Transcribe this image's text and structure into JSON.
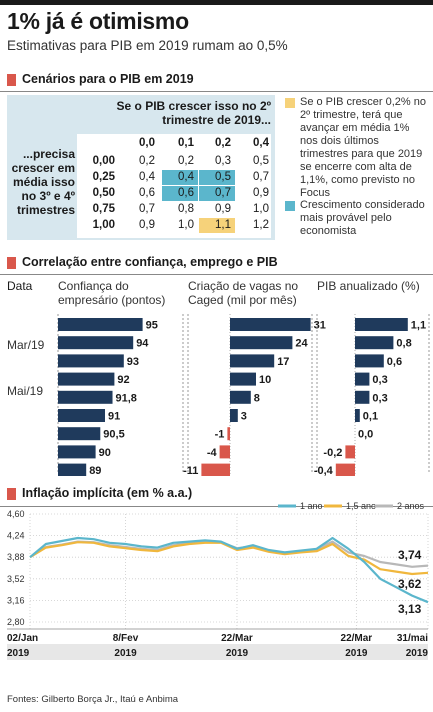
{
  "title": "1% já é otimismo",
  "subtitle": "Estimativas para PIB em 2019 rumam ao 0,5%",
  "colors": {
    "accent": "#d9574b",
    "navy": "#1f3a5c",
    "teal": "#5bb6cc",
    "yellow": "#f6d27a",
    "gold": "#f0b73d",
    "gray": "#b8b8b8",
    "panel": "#d7e7ee"
  },
  "scenarios": {
    "heading": "Cenários para o PIB em 2019",
    "col_header": "Se o PIB crescer isso no 2º trimestre de 2019...",
    "row_header": "...precisa crescer em média isso no 3º e 4º trimestres",
    "col_values": [
      "0,0",
      "0,1",
      "0,2",
      "0,4"
    ],
    "row_values": [
      "0,00",
      "0,25",
      "0,50",
      "0,75",
      "1,00"
    ],
    "cells": [
      [
        "0,2",
        "0,2",
        "0,3",
        "0,5"
      ],
      [
        "0,4",
        "0,4",
        "0,5",
        "0,7"
      ],
      [
        "0,6",
        "0,6",
        "0,7",
        "0,9"
      ],
      [
        "0,7",
        "0,8",
        "0,9",
        "1,0"
      ],
      [
        "0,9",
        "1,0",
        "1,1",
        "1,2"
      ]
    ],
    "highlight_yellow": [
      [
        4,
        2
      ]
    ],
    "highlight_teal": [
      [
        1,
        1
      ],
      [
        1,
        2
      ],
      [
        2,
        1
      ],
      [
        2,
        2
      ]
    ],
    "legend_yellow": "Se o PIB crescer 0,2% no 2º trimestre, terá que avançar em média 1% nos dois últimos trimestres para que 2019 se encerre com alta de 1,1%, como previsto no Focus",
    "legend_teal": "Crescimento considerado mais provável pelo economista"
  },
  "correlation": {
    "heading": "Correlação entre confiança, emprego e PIB",
    "data_label": "Data",
    "row_labels": [
      "Mar/19",
      "Mai/19"
    ],
    "panels": [
      {
        "title": "Confiança do empresário (pontos)"
      },
      {
        "title": "Criação de vagas no Caged (mil por mês)"
      },
      {
        "title": "PIB anualizado (%)"
      }
    ]
  },
  "inflation": {
    "heading": "Inflação implícita (em % a.a.)",
    "callouts": [
      "3,74",
      "3,62",
      "3,13"
    ],
    "x_dates": [
      "02/Jan",
      "8/Fev",
      "22/Mar",
      "22/Mar",
      "31/mai"
    ],
    "x_years": [
      "2019",
      "2019",
      "2019",
      "2019",
      "2019"
    ]
  },
  "source": "Fontes: Gilberto Borça Jr., Itaú e Anbima",
  "chart_data": [
    {
      "type": "bar",
      "title": "Confiança do empresário (pontos)",
      "categories": [
        "1",
        "2",
        "3",
        "4",
        "5",
        "6",
        "7",
        "8",
        "9"
      ],
      "values": [
        95,
        94,
        93,
        92,
        91.8,
        91,
        90.5,
        90,
        89
      ],
      "labels": [
        "95",
        "94",
        "93",
        "92",
        "91,8",
        "91",
        "90,5",
        "90",
        "89"
      ],
      "xlim": [
        86,
        96
      ]
    },
    {
      "type": "bar",
      "title": "Criação de vagas no Caged (mil por mês)",
      "categories": [
        "1",
        "2",
        "3",
        "4",
        "5",
        "6",
        "7",
        "8",
        "9"
      ],
      "values": [
        31,
        24,
        17,
        10,
        8,
        3,
        -1,
        -4,
        -11
      ],
      "labels": [
        "31",
        "24",
        "17",
        "10",
        "8",
        "3",
        "-1",
        "-4",
        "-11"
      ],
      "xlim": [
        -11,
        31
      ]
    },
    {
      "type": "bar",
      "title": "PIB anualizado (%)",
      "categories": [
        "1",
        "2",
        "3",
        "4",
        "5",
        "6",
        "7",
        "8",
        "9"
      ],
      "values": [
        1.1,
        0.8,
        0.6,
        0.3,
        0.3,
        0.1,
        0.0,
        -0.2,
        -0.4
      ],
      "labels": [
        "1,1",
        "0,8",
        "0,6",
        "0,3",
        "0,3",
        "0,1",
        "0,0",
        "-0,2",
        "-0,4"
      ],
      "xlim": [
        -0.4,
        1.1
      ]
    },
    {
      "type": "line",
      "title": "Inflação implícita (em % a.a.)",
      "yticks": [
        "4,60",
        "4,24",
        "3,88",
        "3,52",
        "3,16",
        "2,80"
      ],
      "ylim": [
        2.8,
        4.6
      ],
      "x": [
        0,
        4,
        8,
        12,
        16,
        20,
        24,
        28,
        32,
        36,
        40,
        44,
        48,
        52,
        56,
        60,
        64,
        68,
        72,
        76,
        80,
        84,
        88,
        92,
        96,
        100
      ],
      "series": [
        {
          "name": "1 ano",
          "values": [
            3.88,
            4.1,
            4.15,
            4.2,
            4.18,
            4.12,
            4.1,
            4.06,
            4.04,
            4.12,
            4.14,
            4.16,
            4.14,
            4.02,
            4.08,
            4.0,
            3.96,
            3.99,
            4.02,
            4.2,
            4.02,
            3.8,
            3.52,
            3.38,
            3.24,
            3.13
          ]
        },
        {
          "name": "1,5 ano",
          "values": [
            3.88,
            4.04,
            4.08,
            4.13,
            4.12,
            4.06,
            4.03,
            4.0,
            3.98,
            4.06,
            4.1,
            4.12,
            4.12,
            4.0,
            4.04,
            3.97,
            3.93,
            3.96,
            3.98,
            4.1,
            3.9,
            3.84,
            3.68,
            3.64,
            3.6,
            3.62
          ]
        },
        {
          "name": "2 anos",
          "values": [
            3.88,
            4.05,
            4.09,
            4.14,
            4.13,
            4.08,
            4.05,
            4.02,
            4.0,
            4.08,
            4.12,
            4.14,
            4.13,
            4.03,
            4.06,
            3.99,
            3.95,
            3.98,
            4.01,
            4.14,
            3.96,
            3.9,
            3.8,
            3.76,
            3.72,
            3.74
          ]
        }
      ]
    }
  ]
}
